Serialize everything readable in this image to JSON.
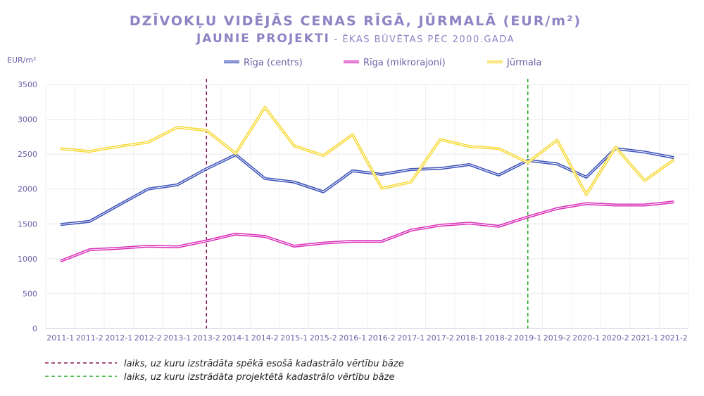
{
  "chart_data": {
    "type": "line",
    "title_line1": "DZĪVOKĻU VIDĒJĀS CENAS RĪGĀ, JŪRMALĀ (EUR/m²)",
    "title_line2": "JAUNIE PROJEKTI",
    "title_line2_suffix": " - ĒKAS BŪVĒTAS PĒC 2000.GADA",
    "ylabel": "EUR/m²",
    "ylim": [
      0,
      3500
    ],
    "yticks": [
      0,
      500,
      1000,
      1500,
      2000,
      2500,
      3000,
      3500
    ],
    "grid": true,
    "legend_position": "top",
    "categories": [
      "2011-1",
      "2011-2",
      "2012-1",
      "2012-2",
      "2013-1",
      "2013-2",
      "2014-1",
      "2014-2",
      "2015-1",
      "2015-2",
      "2016-1",
      "2016-2",
      "2017-1",
      "2017-2",
      "2018-1",
      "2018-2",
      "2019-1",
      "2019-2",
      "2020-1",
      "2020-2",
      "2021-1",
      "2021-2"
    ],
    "series": [
      {
        "name": "Rīga (centrs)",
        "color": "#3a4fb8",
        "values": [
          1490,
          1535,
          1770,
          2000,
          2060,
          2290,
          2490,
          2150,
          2100,
          1960,
          2260,
          2210,
          2280,
          2295,
          2350,
          2200,
          2410,
          2360,
          2170,
          2580,
          2530,
          2450
        ]
      },
      {
        "name": "Rīga (mikrorajoni)",
        "color": "#d82bb7",
        "values": [
          965,
          1130,
          1150,
          1180,
          1170,
          1255,
          1355,
          1320,
          1180,
          1225,
          1250,
          1250,
          1410,
          1480,
          1510,
          1465,
          1600,
          1720,
          1790,
          1770,
          1770,
          1815
        ]
      },
      {
        "name": "Jūrmala",
        "color": "#f5d933",
        "values": [
          2580,
          2540,
          2610,
          2670,
          2885,
          2840,
          2510,
          3170,
          2620,
          2480,
          2780,
          2010,
          2100,
          2710,
          2610,
          2580,
          2380,
          2700,
          1920,
          2600,
          2120,
          2420
        ]
      }
    ],
    "vlines": [
      {
        "at": "2013-2",
        "color": "#8b1a5a",
        "label": "laiks, uz kuru izstrādāta spēkā esošā kadastrālo vērtību bāze"
      },
      {
        "at": "2019-1",
        "color": "#22aa22",
        "label": "laiks, uz kuru izstrādāta projektētā kadastrālo vērtību bāze"
      }
    ]
  }
}
